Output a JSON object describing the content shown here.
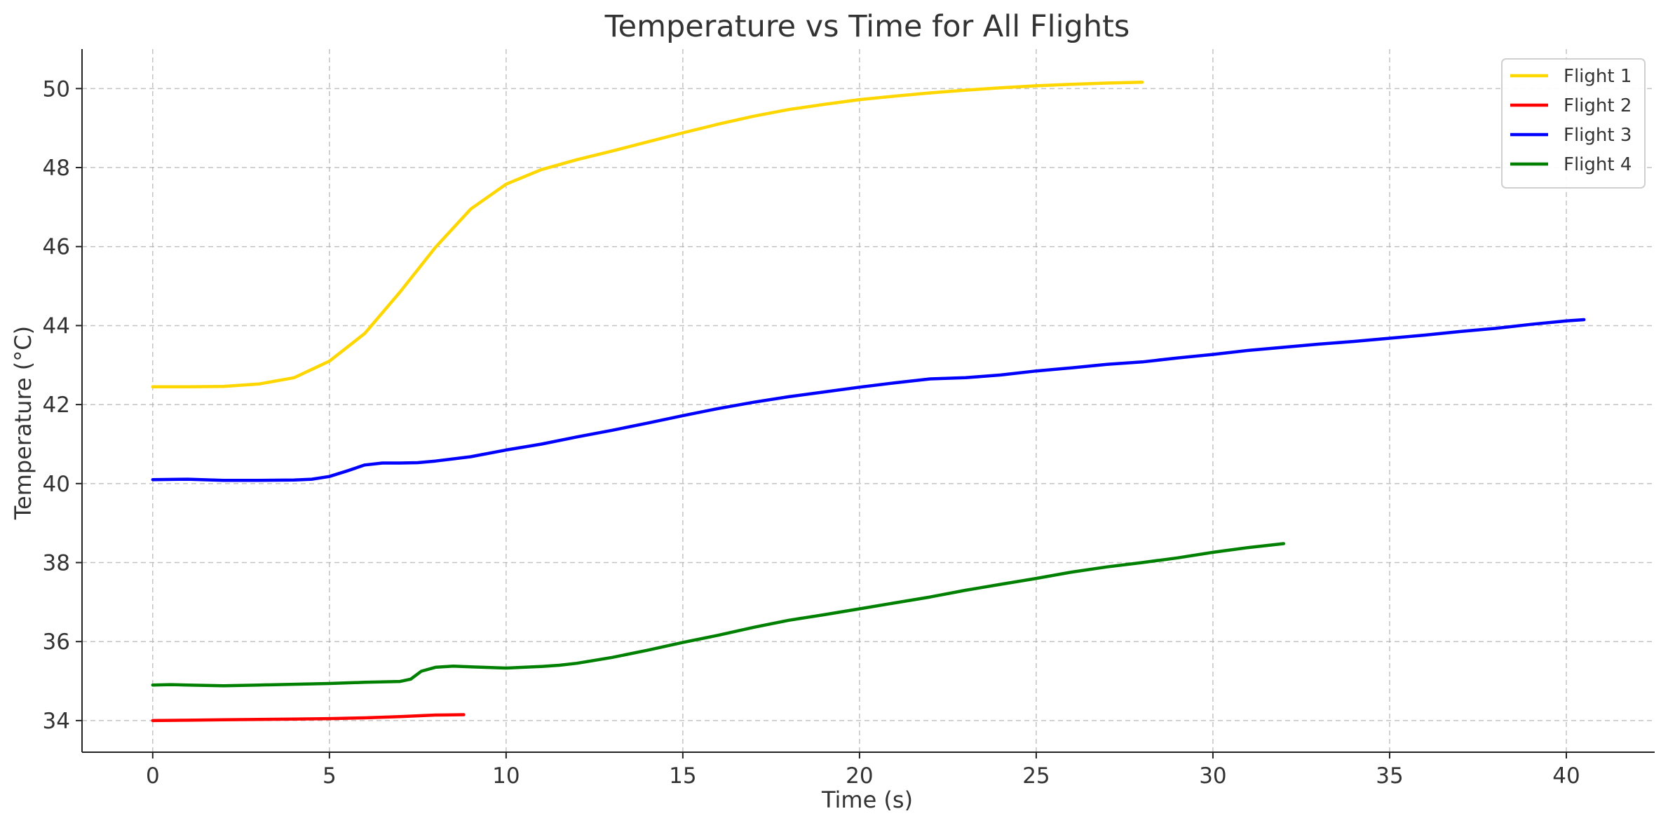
{
  "chart_data": {
    "type": "line",
    "title": "Temperature vs Time for All Flights",
    "xlabel": "Time (s)",
    "ylabel": "Temperature (°C)",
    "xlim": [
      -2,
      42.5
    ],
    "ylim": [
      33.2,
      51
    ],
    "x_ticks": [
      0,
      5,
      10,
      15,
      20,
      25,
      30,
      35,
      40
    ],
    "y_ticks": [
      34,
      36,
      38,
      40,
      42,
      44,
      46,
      48,
      50
    ],
    "grid": true,
    "legend_position": "top-right",
    "colors": {
      "Flight 1": "#FFD700",
      "Flight 2": "#FF0000",
      "Flight 3": "#0000FF",
      "Flight 4": "#008000"
    },
    "series": [
      {
        "name": "Flight 1",
        "x": [
          0,
          1,
          2,
          3,
          4,
          5,
          6,
          7,
          8,
          9,
          10,
          11,
          12,
          13,
          14,
          15,
          16,
          17,
          18,
          19,
          20,
          21,
          22,
          23,
          24,
          25,
          26,
          27,
          28
        ],
        "y": [
          42.45,
          42.45,
          42.46,
          42.52,
          42.68,
          43.1,
          43.8,
          44.85,
          45.98,
          46.95,
          47.58,
          47.95,
          48.2,
          48.42,
          48.65,
          48.88,
          49.1,
          49.3,
          49.47,
          49.6,
          49.72,
          49.81,
          49.89,
          49.96,
          50.02,
          50.07,
          50.11,
          50.14,
          50.16
        ]
      },
      {
        "name": "Flight 2",
        "x": [
          0,
          1,
          2,
          3,
          4,
          5,
          6,
          7,
          8,
          8.8
        ],
        "y": [
          34.0,
          34.01,
          34.02,
          34.03,
          34.04,
          34.05,
          34.07,
          34.1,
          34.14,
          34.15
        ]
      },
      {
        "name": "Flight 3",
        "x": [
          0,
          1,
          2,
          3,
          4,
          4.5,
          5,
          5.5,
          6,
          6.5,
          7,
          7.5,
          8,
          9,
          10,
          11,
          12,
          13,
          14,
          15,
          16,
          17,
          18,
          19,
          20,
          21,
          22,
          23,
          24,
          25,
          26,
          27,
          28,
          29,
          30,
          31,
          32,
          33,
          34,
          35,
          36,
          37,
          38,
          39,
          40,
          40.5
        ],
        "y": [
          40.1,
          40.11,
          40.08,
          40.08,
          40.09,
          40.11,
          40.18,
          40.32,
          40.47,
          40.52,
          40.52,
          40.53,
          40.57,
          40.68,
          40.85,
          41.0,
          41.18,
          41.35,
          41.53,
          41.72,
          41.9,
          42.06,
          42.2,
          42.32,
          42.44,
          42.55,
          42.65,
          42.68,
          42.75,
          42.85,
          42.93,
          43.02,
          43.08,
          43.18,
          43.27,
          43.37,
          43.45,
          43.53,
          43.6,
          43.68,
          43.76,
          43.85,
          43.93,
          44.03,
          44.12,
          44.15
        ]
      },
      {
        "name": "Flight 4",
        "x": [
          0,
          0.5,
          1,
          2,
          3,
          4,
          5,
          6,
          7,
          7.3,
          7.6,
          8,
          8.5,
          9,
          10,
          11,
          11.5,
          12,
          13,
          14,
          15,
          16,
          17,
          18,
          19,
          20,
          21,
          22,
          23,
          24,
          25,
          26,
          27,
          28,
          29,
          30,
          31,
          32
        ],
        "y": [
          34.9,
          34.91,
          34.9,
          34.88,
          34.9,
          34.92,
          34.94,
          34.97,
          34.99,
          35.05,
          35.25,
          35.35,
          35.38,
          35.36,
          35.33,
          35.37,
          35.4,
          35.45,
          35.6,
          35.78,
          35.98,
          36.16,
          36.36,
          36.54,
          36.68,
          36.83,
          36.98,
          37.13,
          37.3,
          37.45,
          37.6,
          37.76,
          37.89,
          38.0,
          38.12,
          38.26,
          38.38,
          38.48
        ]
      }
    ]
  }
}
